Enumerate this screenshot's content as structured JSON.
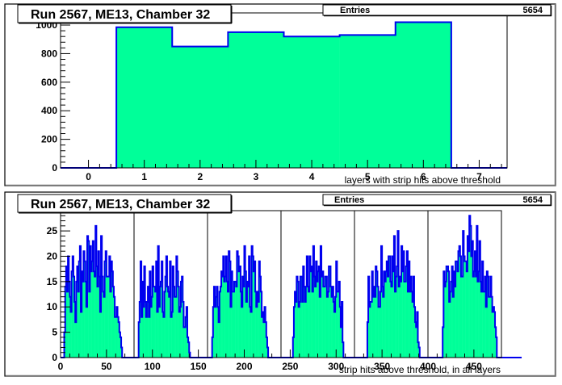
{
  "colors": {
    "fill": "#00ff99",
    "line": "#0000ee",
    "frame": "#000000",
    "pad": "#ffffff"
  },
  "chart_data": [
    {
      "type": "bar",
      "title": "Run 2567, ME13, Chamber 32",
      "stats": {
        "label": "Entries",
        "value": "5654"
      },
      "xlabel": "layers with strip hits above threshold",
      "ylabel": "",
      "xlim": [
        -0.5,
        7.5
      ],
      "ylim": [
        0,
        1085
      ],
      "x_ticks": [
        0,
        1,
        2,
        3,
        4,
        5,
        6,
        7
      ],
      "y_ticks": [
        0,
        200,
        400,
        600,
        800,
        1000
      ],
      "categories": [
        0,
        1,
        2,
        3,
        4,
        5,
        6,
        7
      ],
      "values": [
        0,
        985,
        850,
        950,
        920,
        930,
        1020,
        0
      ]
    },
    {
      "type": "bar",
      "title": "Run 2567, ME13, Chamber 32",
      "stats": {
        "label": "Entries",
        "value": "5654"
      },
      "xlabel": "strip hits above threshold, in all layers",
      "ylabel": "",
      "xlim": [
        0,
        480
      ],
      "ylim": [
        0,
        29
      ],
      "x_ticks": [
        0,
        50,
        100,
        150,
        200,
        250,
        300,
        350,
        400,
        450
      ],
      "y_ticks": [
        0,
        5,
        10,
        15,
        20,
        25
      ],
      "layer_boundaries": [
        80,
        160,
        240,
        320,
        400
      ],
      "bin_start": 0,
      "bin_width": 1,
      "values": [
        0,
        0,
        0,
        0,
        5,
        14,
        18,
        13,
        20,
        15,
        12,
        9,
        17,
        20,
        16,
        11,
        7,
        15,
        18,
        13,
        19,
        22,
        9,
        17,
        15,
        21,
        19,
        15,
        10,
        24,
        23,
        13,
        22,
        17,
        19,
        23,
        17,
        16,
        26,
        18,
        14,
        21,
        16,
        9,
        24,
        16,
        13,
        12,
        19,
        21,
        16,
        16,
        16,
        20,
        13,
        19,
        17,
        14,
        12,
        8,
        8,
        10,
        8,
        7,
        5,
        4,
        2,
        0,
        0,
        0,
        0,
        0,
        0,
        0,
        0,
        0,
        0,
        0,
        0,
        0,
        0,
        0,
        0,
        0,
        0,
        7,
        11,
        19,
        8,
        15,
        10,
        18,
        11,
        8,
        11,
        14,
        8,
        17,
        10,
        12,
        18,
        14,
        14,
        13,
        19,
        9,
        22,
        10,
        14,
        15,
        19,
        9,
        8,
        13,
        16,
        20,
        14,
        13,
        12,
        19,
        8,
        9,
        18,
        14,
        12,
        12,
        20,
        17,
        14,
        9,
        10,
        15,
        16,
        11,
        6,
        6,
        8,
        10,
        4,
        3,
        1,
        0,
        0,
        0,
        0,
        0,
        0,
        0,
        0,
        0,
        0,
        0,
        0,
        0,
        0,
        0,
        0,
        0,
        0,
        0,
        0,
        0,
        0,
        0,
        0,
        4,
        10,
        14,
        10,
        12,
        14,
        10,
        7,
        13,
        14,
        17,
        16,
        20,
        15,
        16,
        20,
        15,
        13,
        21,
        19,
        10,
        17,
        13,
        13,
        15,
        15,
        14,
        21,
        20,
        17,
        18,
        13,
        10,
        16,
        14,
        22,
        17,
        11,
        15,
        14,
        20,
        10,
        9,
        22,
        20,
        17,
        19,
        13,
        10,
        13,
        11,
        19,
        16,
        13,
        8,
        9,
        7,
        10,
        7,
        4,
        2,
        0,
        0,
        0,
        0,
        0,
        0,
        0,
        0,
        0,
        0,
        0,
        0,
        0,
        0,
        0,
        0,
        0,
        0,
        0,
        0,
        0,
        0,
        0,
        0,
        0,
        0,
        0,
        4,
        10,
        13,
        11,
        16,
        15,
        10,
        11,
        16,
        16,
        11,
        18,
        14,
        11,
        14,
        20,
        14,
        13,
        20,
        17,
        18,
        13,
        22,
        16,
        14,
        19,
        15,
        17,
        18,
        12,
        22,
        16,
        17,
        14,
        14,
        16,
        16,
        12,
        13,
        18,
        18,
        14,
        12,
        14,
        11,
        9,
        12,
        19,
        13,
        13,
        15,
        10,
        6,
        11,
        3,
        0,
        0,
        0,
        0,
        0,
        0,
        0,
        0,
        0,
        0,
        0,
        0,
        0,
        0,
        0,
        0,
        0,
        0,
        0,
        0,
        0,
        0,
        0,
        0,
        0,
        0,
        7,
        16,
        10,
        11,
        11,
        17,
        12,
        14,
        12,
        18,
        17,
        14,
        10,
        10,
        13,
        22,
        14,
        12,
        17,
        15,
        17,
        19,
        16,
        20,
        20,
        15,
        14,
        20,
        17,
        24,
        13,
        16,
        18,
        25,
        14,
        16,
        15,
        22,
        17,
        21,
        15,
        15,
        18,
        21,
        13,
        19,
        13,
        16,
        13,
        11,
        16,
        10,
        7,
        6,
        9,
        3,
        2,
        0,
        0,
        0,
        0,
        0,
        0,
        0,
        0,
        0,
        0,
        0,
        0,
        0,
        0,
        0,
        0,
        0,
        0,
        0,
        0,
        0,
        0,
        0,
        0,
        0,
        6,
        17,
        14,
        15,
        18,
        18,
        17,
        11,
        13,
        15,
        18,
        12,
        17,
        14,
        19,
        19,
        17,
        21,
        22,
        20,
        16,
        16,
        25,
        20,
        19,
        19,
        17,
        24,
        21,
        28,
        26,
        20,
        23,
        16,
        17,
        21,
        16,
        26,
        15,
        17,
        23,
        15,
        13,
        19,
        13,
        13,
        16,
        10,
        17,
        16,
        12,
        12,
        16,
        12,
        9,
        10,
        9,
        6,
        4,
        0,
        0,
        0,
        0,
        0,
        0,
        0,
        0,
        0,
        0,
        0,
        0,
        0,
        0,
        0,
        0,
        0,
        0,
        0,
        0,
        0,
        0,
        0,
        0,
        0,
        0,
        0
      ]
    }
  ]
}
